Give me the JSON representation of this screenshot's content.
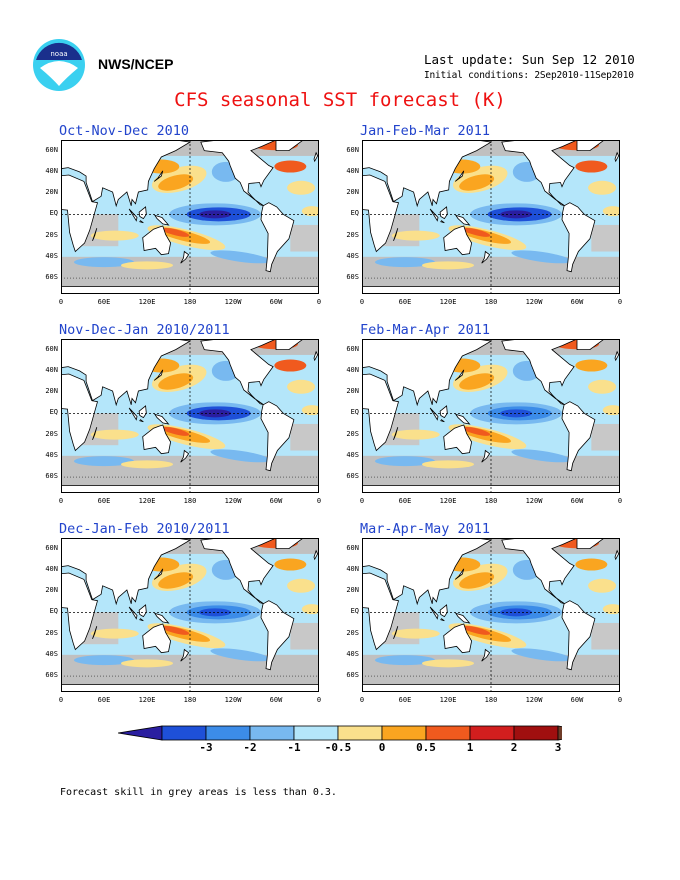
{
  "header": {
    "org": "NWS/NCEP",
    "last_update": "Last update: Sun Sep 12 2010",
    "initial_conditions": "Initial conditions: 2Sep2010-11Sep2010",
    "title": "CFS seasonal SST forecast (K)"
  },
  "lat_labels": [
    "60N",
    "40N",
    "20N",
    "EQ",
    "20S",
    "40S",
    "60S"
  ],
  "lon_labels": [
    "0",
    "60E",
    "120E",
    "180",
    "120W",
    "60W",
    "0"
  ],
  "panels": [
    {
      "title": "Oct-Nov-Dec 2010"
    },
    {
      "title": "Jan-Feb-Mar 2011"
    },
    {
      "title": "Nov-Dec-Jan 2010/2011"
    },
    {
      "title": "Feb-Mar-Apr 2011"
    },
    {
      "title": "Dec-Jan-Feb 2010/2011"
    },
    {
      "title": "Mar-Apr-May 2011"
    }
  ],
  "colorbar": {
    "labels": [
      "-3",
      "-2",
      "-1",
      "-0.5",
      "0",
      "0.5",
      "1",
      "2",
      "3"
    ],
    "colors": [
      "#2a1ea0",
      "#1e50d8",
      "#3c8ce8",
      "#78b9f0",
      "#b4e6fa",
      "#fae08c",
      "#faa520",
      "#f05a1e",
      "#d21e1e",
      "#a00f0f",
      "#6e3c28"
    ]
  },
  "footnote": "Forecast skill in grey areas is less than 0.3."
}
